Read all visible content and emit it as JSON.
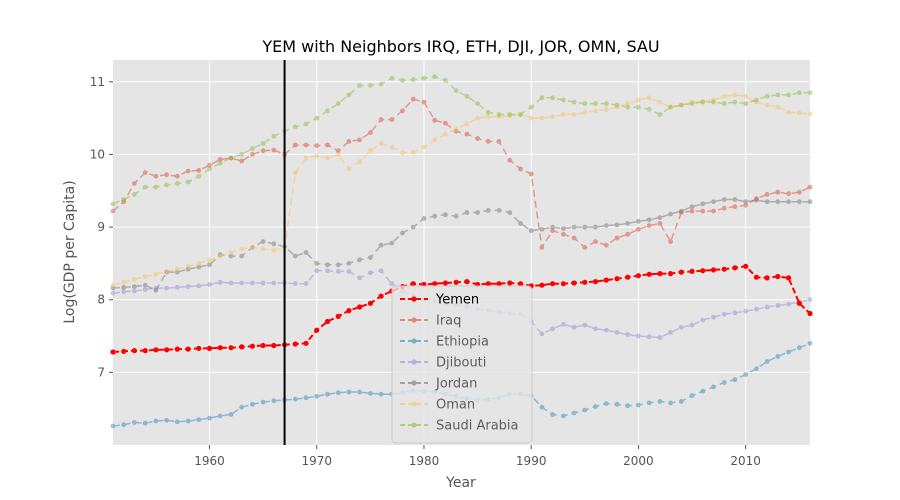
{
  "chart_data": {
    "type": "line",
    "title": "YEM with Neighbors IRQ, ETH, DJI, JOR, OMN, SAU",
    "xlabel": "Year",
    "ylabel": "Log(GDP per Capita)",
    "xlim": [
      1951,
      2016
    ],
    "ylim": [
      6.0,
      11.3
    ],
    "x_ticks": [
      1960,
      1970,
      1980,
      1990,
      2000,
      2010
    ],
    "y_ticks": [
      7,
      8,
      9,
      10,
      11
    ],
    "vline_x": 1967,
    "grid": true,
    "legend_position": "lower-center",
    "x": [
      1951,
      1952,
      1953,
      1954,
      1955,
      1956,
      1957,
      1958,
      1959,
      1960,
      1961,
      1962,
      1963,
      1964,
      1965,
      1966,
      1967,
      1968,
      1969,
      1970,
      1971,
      1972,
      1973,
      1974,
      1975,
      1976,
      1977,
      1978,
      1979,
      1980,
      1981,
      1982,
      1983,
      1984,
      1985,
      1986,
      1987,
      1988,
      1989,
      1990,
      1991,
      1992,
      1993,
      1994,
      1995,
      1996,
      1997,
      1998,
      1999,
      2000,
      2001,
      2002,
      2003,
      2004,
      2005,
      2006,
      2007,
      2008,
      2009,
      2010,
      2011,
      2012,
      2013,
      2014,
      2015,
      2016
    ],
    "series": [
      {
        "name": "Yemen",
        "color": "#ff0000",
        "style": "dashed",
        "emphasis": true,
        "values": [
          7.28,
          7.29,
          7.3,
          7.3,
          7.31,
          7.31,
          7.32,
          7.32,
          7.33,
          7.33,
          7.34,
          7.34,
          7.35,
          7.36,
          7.37,
          7.37,
          7.38,
          7.39,
          7.4,
          7.58,
          7.7,
          7.77,
          7.85,
          7.9,
          7.95,
          8.05,
          8.12,
          8.18,
          8.22,
          8.21,
          8.22,
          8.23,
          8.24,
          8.25,
          8.21,
          8.22,
          8.22,
          8.23,
          8.22,
          8.19,
          8.2,
          8.22,
          8.22,
          8.23,
          8.24,
          8.25,
          8.27,
          8.29,
          8.31,
          8.33,
          8.35,
          8.36,
          8.36,
          8.38,
          8.39,
          8.4,
          8.41,
          8.42,
          8.44,
          8.46,
          8.31,
          8.3,
          8.32,
          8.3,
          7.95,
          7.81
        ]
      },
      {
        "name": "Iraq",
        "color": "#e24a33",
        "style": "dashed",
        "emphasis": false,
        "values": [
          9.22,
          9.35,
          9.6,
          9.75,
          9.7,
          9.72,
          9.7,
          9.77,
          9.78,
          9.85,
          9.93,
          9.95,
          9.91,
          10.0,
          10.05,
          10.06,
          10.0,
          10.13,
          10.13,
          10.12,
          10.13,
          10.05,
          10.18,
          10.2,
          10.3,
          10.48,
          10.48,
          10.6,
          10.76,
          10.72,
          10.47,
          10.43,
          10.32,
          10.28,
          10.22,
          10.18,
          10.18,
          9.92,
          9.8,
          9.73,
          8.72,
          8.95,
          8.9,
          8.85,
          8.72,
          8.8,
          8.75,
          8.85,
          8.9,
          8.97,
          9.02,
          9.05,
          8.8,
          9.2,
          9.22,
          9.22,
          9.22,
          9.26,
          9.28,
          9.3,
          9.39,
          9.45,
          9.48,
          9.46,
          9.48,
          9.55
        ]
      },
      {
        "name": "Ethiopia",
        "color": "#348abd",
        "style": "dashed",
        "emphasis": false,
        "values": [
          6.26,
          6.28,
          6.31,
          6.3,
          6.33,
          6.34,
          6.32,
          6.33,
          6.35,
          6.37,
          6.4,
          6.42,
          6.52,
          6.56,
          6.59,
          6.61,
          6.62,
          6.63,
          6.65,
          6.67,
          6.7,
          6.72,
          6.73,
          6.73,
          6.71,
          6.7,
          6.7,
          6.72,
          6.75,
          6.74,
          6.73,
          6.7,
          6.67,
          6.64,
          6.62,
          6.63,
          6.65,
          6.7,
          6.7,
          6.68,
          6.52,
          6.42,
          6.4,
          6.44,
          6.48,
          6.53,
          6.57,
          6.56,
          6.54,
          6.55,
          6.58,
          6.6,
          6.58,
          6.6,
          6.68,
          6.74,
          6.8,
          6.86,
          6.9,
          6.97,
          7.05,
          7.15,
          7.22,
          7.28,
          7.34,
          7.4
        ]
      },
      {
        "name": "Djibouti",
        "color": "#988ed5",
        "style": "dashed",
        "emphasis": false,
        "values": [
          8.09,
          8.11,
          8.12,
          8.14,
          8.16,
          8.16,
          8.17,
          8.18,
          8.19,
          8.21,
          8.24,
          8.23,
          8.23,
          8.23,
          8.23,
          8.23,
          8.23,
          8.22,
          8.22,
          8.4,
          8.4,
          8.39,
          8.39,
          8.3,
          8.37,
          8.4,
          8.22,
          8.12,
          8.05,
          8.0,
          7.98,
          7.95,
          7.93,
          7.9,
          7.87,
          7.85,
          7.83,
          7.81,
          7.8,
          7.7,
          7.53,
          7.6,
          7.66,
          7.62,
          7.65,
          7.6,
          7.58,
          7.55,
          7.52,
          7.5,
          7.49,
          7.48,
          7.55,
          7.62,
          7.65,
          7.72,
          7.76,
          7.8,
          7.82,
          7.84,
          7.87,
          7.9,
          7.92,
          7.94,
          7.97,
          8.0
        ]
      },
      {
        "name": "Jordan",
        "color": "#777777",
        "style": "dashed",
        "emphasis": false,
        "values": [
          8.16,
          8.17,
          8.18,
          8.2,
          8.13,
          8.38,
          8.38,
          8.42,
          8.45,
          8.48,
          8.62,
          8.6,
          8.6,
          8.72,
          8.8,
          8.77,
          8.73,
          8.6,
          8.65,
          8.5,
          8.48,
          8.48,
          8.5,
          8.55,
          8.58,
          8.75,
          8.78,
          8.92,
          9.0,
          9.12,
          9.15,
          9.17,
          9.15,
          9.2,
          9.2,
          9.23,
          9.23,
          9.2,
          9.05,
          8.95,
          8.97,
          9.0,
          8.98,
          9.0,
          9.0,
          9.0,
          9.02,
          9.03,
          9.05,
          9.08,
          9.1,
          9.13,
          9.18,
          9.22,
          9.28,
          9.32,
          9.35,
          9.38,
          9.38,
          9.35,
          9.37,
          9.35,
          9.35,
          9.35,
          9.35,
          9.35
        ]
      },
      {
        "name": "Oman",
        "color": "#fbc15e",
        "style": "dashed",
        "emphasis": false,
        "values": [
          8.2,
          8.24,
          8.28,
          8.32,
          8.35,
          8.39,
          8.42,
          8.46,
          8.5,
          8.55,
          8.6,
          8.65,
          8.7,
          8.72,
          8.7,
          8.68,
          8.72,
          9.75,
          9.95,
          9.98,
          9.95,
          10.0,
          9.8,
          9.9,
          10.05,
          10.15,
          10.1,
          10.02,
          10.03,
          10.1,
          10.2,
          10.28,
          10.35,
          10.42,
          10.5,
          10.52,
          10.52,
          10.53,
          10.55,
          10.5,
          10.5,
          10.52,
          10.55,
          10.55,
          10.58,
          10.6,
          10.62,
          10.65,
          10.7,
          10.75,
          10.78,
          10.72,
          10.65,
          10.68,
          10.72,
          10.73,
          10.75,
          10.8,
          10.82,
          10.8,
          10.72,
          10.68,
          10.65,
          10.58,
          10.57,
          10.56
        ]
      },
      {
        "name": "Saudi Arabia",
        "color": "#8eba42",
        "style": "dashed",
        "emphasis": false,
        "values": [
          9.32,
          9.38,
          9.45,
          9.55,
          9.55,
          9.58,
          9.6,
          9.62,
          9.7,
          9.8,
          9.88,
          9.95,
          10.0,
          10.08,
          10.15,
          10.25,
          10.32,
          10.38,
          10.42,
          10.5,
          10.6,
          10.7,
          10.82,
          10.95,
          10.95,
          10.97,
          11.05,
          11.02,
          11.03,
          11.05,
          11.07,
          11.02,
          10.88,
          10.8,
          10.7,
          10.58,
          10.55,
          10.55,
          10.55,
          10.65,
          10.78,
          10.78,
          10.75,
          10.72,
          10.7,
          10.7,
          10.7,
          10.68,
          10.65,
          10.65,
          10.62,
          10.55,
          10.65,
          10.68,
          10.7,
          10.72,
          10.72,
          10.7,
          10.72,
          10.7,
          10.75,
          10.8,
          10.82,
          10.82,
          10.85,
          10.85
        ]
      }
    ]
  }
}
